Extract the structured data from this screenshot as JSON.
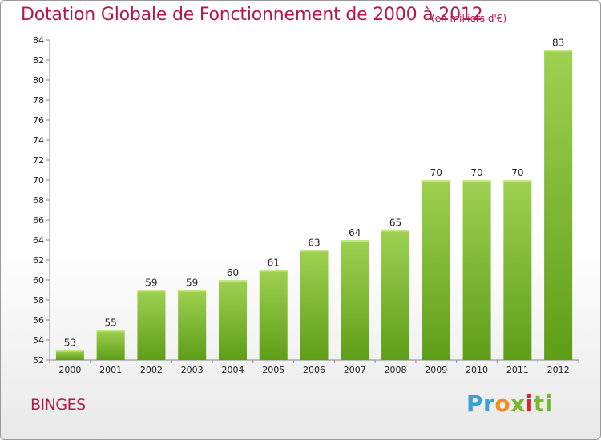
{
  "header": {
    "title": "Dotation Globale de Fonctionnement de 2000 à 2012",
    "subtitle": "(en milliers d'€)"
  },
  "footer": {
    "commune": "BINGES",
    "logo_text": "Proxiti",
    "logo_parts": [
      "Pr",
      "o",
      "x",
      "i",
      "ti"
    ]
  },
  "colors": {
    "title": "#b5174c",
    "bar_top": "#9fd152",
    "bar_bottom": "#5e9e17",
    "axis": "#888888",
    "grid_tick": "#888888"
  },
  "chart_data": {
    "type": "bar",
    "title": "Dotation Globale de Fonctionnement de 2000 à 2012",
    "subtitle": "(en milliers d'€)",
    "xlabel": "",
    "ylabel": "",
    "categories": [
      "2000",
      "2001",
      "2002",
      "2003",
      "2004",
      "2005",
      "2006",
      "2007",
      "2008",
      "2009",
      "2010",
      "2011",
      "2012"
    ],
    "values": [
      53,
      55,
      59,
      59,
      60,
      61,
      63,
      64,
      65,
      70,
      70,
      70,
      83
    ],
    "ylim": [
      52,
      84
    ],
    "yticks": [
      52,
      54,
      56,
      58,
      60,
      62,
      64,
      66,
      68,
      70,
      72,
      74,
      76,
      78,
      80,
      82,
      84
    ],
    "grid": false,
    "legend": "none"
  }
}
